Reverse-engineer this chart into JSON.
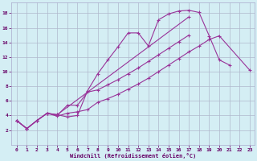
{
  "xlabel": "Windchill (Refroidissement éolien,°C)",
  "bg_color": "#d4eef4",
  "grid_color": "#b0b8cc",
  "line_color": "#993399",
  "xlim": [
    -0.5,
    23.5
  ],
  "ylim": [
    0,
    19.5
  ],
  "xticks": [
    0,
    1,
    2,
    3,
    4,
    5,
    6,
    7,
    8,
    9,
    10,
    11,
    12,
    13,
    14,
    15,
    16,
    17,
    18,
    19,
    20,
    21,
    22,
    23
  ],
  "yticks": [
    2,
    4,
    6,
    8,
    10,
    12,
    14,
    16,
    18
  ],
  "curve1_x": [
    0,
    1,
    2,
    3,
    4,
    5,
    6,
    7,
    8,
    9,
    10,
    11,
    12,
    13,
    14,
    15,
    16,
    17,
    18,
    19,
    20,
    21
  ],
  "curve1_y": [
    3.3,
    2.2,
    3.3,
    4.3,
    4.1,
    3.8,
    4.0,
    7.4,
    9.7,
    11.6,
    13.4,
    15.3,
    15.3,
    13.5,
    17.1,
    17.9,
    18.3,
    18.4,
    18.1,
    14.9,
    11.6,
    10.9
  ],
  "curve2_x": [
    0,
    1,
    2,
    3,
    4,
    17
  ],
  "curve2_y": [
    3.3,
    2.2,
    3.3,
    4.3,
    4.1,
    17.5
  ],
  "curve3_x": [
    0,
    1,
    2,
    3,
    4,
    5,
    6,
    7,
    8,
    9,
    10,
    11,
    12,
    13,
    14,
    15,
    16,
    17,
    18,
    19,
    20,
    21,
    22,
    23
  ],
  "curve3_y": [
    3.3,
    2.2,
    3.3,
    4.3,
    3.9,
    4.3,
    4.5,
    4.8,
    5.8,
    6.3,
    6.9,
    7.6,
    8.3,
    9.1,
    10.0,
    10.9,
    11.8,
    12.7,
    13.5,
    14.4,
    14.9,
    null,
    null,
    10.2
  ],
  "curve4_x": [
    0,
    1,
    2,
    3,
    4,
    5,
    6,
    7,
    8,
    9,
    10,
    11,
    12,
    13,
    14,
    15,
    16,
    17,
    18,
    19,
    20,
    21
  ],
  "curve4_y": [
    3.3,
    2.2,
    3.3,
    4.3,
    4.0,
    5.4,
    5.4,
    7.2,
    7.5,
    8.2,
    8.9,
    9.7,
    10.5,
    11.4,
    12.3,
    13.2,
    14.1,
    15.0,
    null,
    null,
    null,
    null
  ]
}
